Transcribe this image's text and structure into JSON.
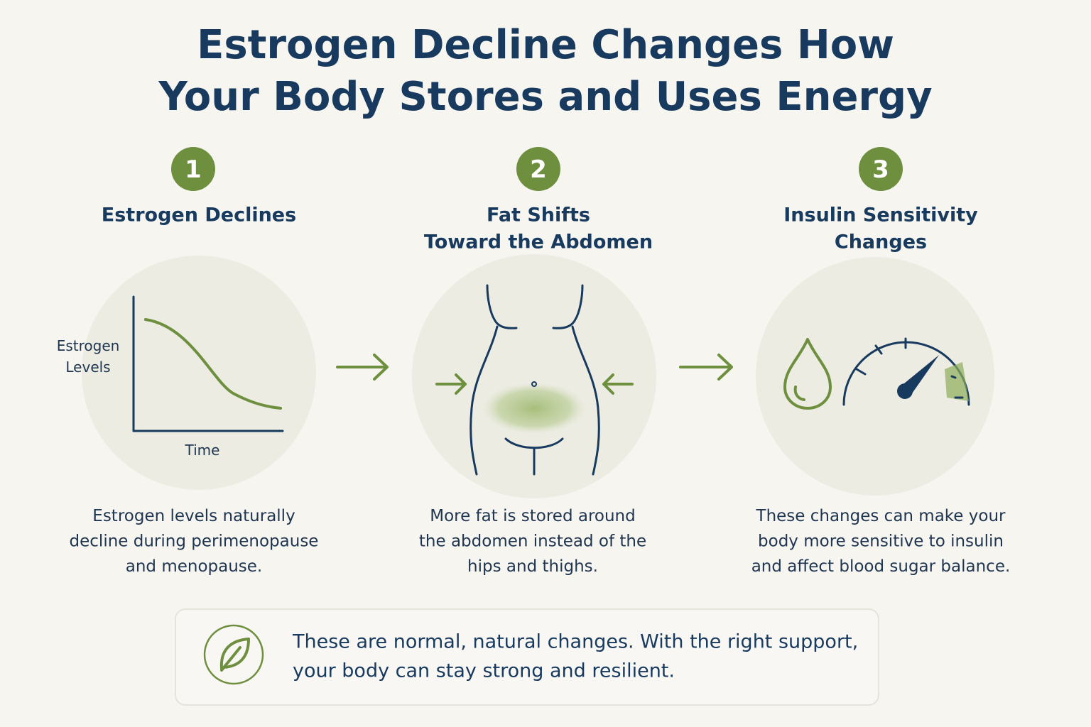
{
  "header": {
    "title_lines": [
      "Estrogen Decline Changes How",
      "Your Body Stores and Uses Energy"
    ]
  },
  "steps": [
    {
      "number": "1",
      "heading_lines": [
        "Estrogen Declines"
      ],
      "description_lines": [
        "Estrogen levels naturally",
        "decline during perimenopause",
        "and menopause."
      ],
      "y_axis_label_lines": [
        "Estrogen",
        "Levels"
      ],
      "x_axis_label": "Time"
    },
    {
      "number": "2",
      "heading_lines": [
        "Fat Shifts",
        "Toward the Abdomen"
      ],
      "description_lines": [
        "More fat is stored around",
        "the abdomen instead of the",
        "hips and thighs."
      ]
    },
    {
      "number": "3",
      "heading_lines": [
        "Insulin Sensitivity",
        "Changes"
      ],
      "description_lines": [
        "These changes can make your",
        "body more sensitive to insulin",
        "and affect blood sugar balance."
      ]
    }
  ],
  "footer": {
    "note_lines": [
      "These are normal, natural changes. With the right support,",
      "your body can stay strong and resilient."
    ]
  }
}
